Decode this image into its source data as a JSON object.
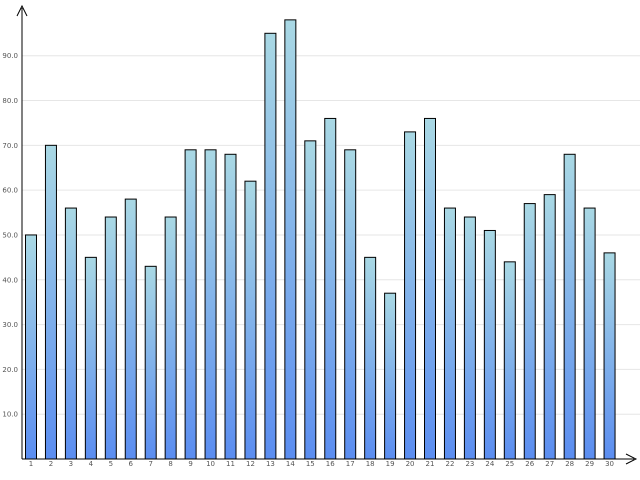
{
  "chart_data": {
    "type": "bar",
    "title": "",
    "xlabel": "",
    "ylabel": "",
    "categories": [
      "1",
      "2",
      "3",
      "4",
      "5",
      "6",
      "7",
      "8",
      "9",
      "10",
      "11",
      "12",
      "13",
      "14",
      "15",
      "16",
      "17",
      "18",
      "19",
      "20",
      "21",
      "22",
      "23",
      "24",
      "25",
      "26",
      "27",
      "28",
      "29",
      "30"
    ],
    "values": [
      50,
      70,
      56,
      45,
      54,
      58,
      43,
      54,
      69,
      69,
      68,
      62,
      95,
      98,
      71,
      76,
      69,
      45,
      37,
      73,
      76,
      56,
      54,
      51,
      44,
      57,
      59,
      68,
      56,
      46
    ],
    "ylim": [
      0,
      100
    ],
    "yticks": [
      "10.0",
      "20.0",
      "30.0",
      "40.0",
      "50.0",
      "60.0",
      "70.0",
      "80.0",
      "90.0"
    ],
    "grid": true,
    "colors": {
      "bar_top": "#a9d8e4",
      "bar_bottom": "#5b8df0",
      "bar_stroke": "#000000",
      "grid": "#e6e6e6",
      "axis": "#000000"
    }
  }
}
